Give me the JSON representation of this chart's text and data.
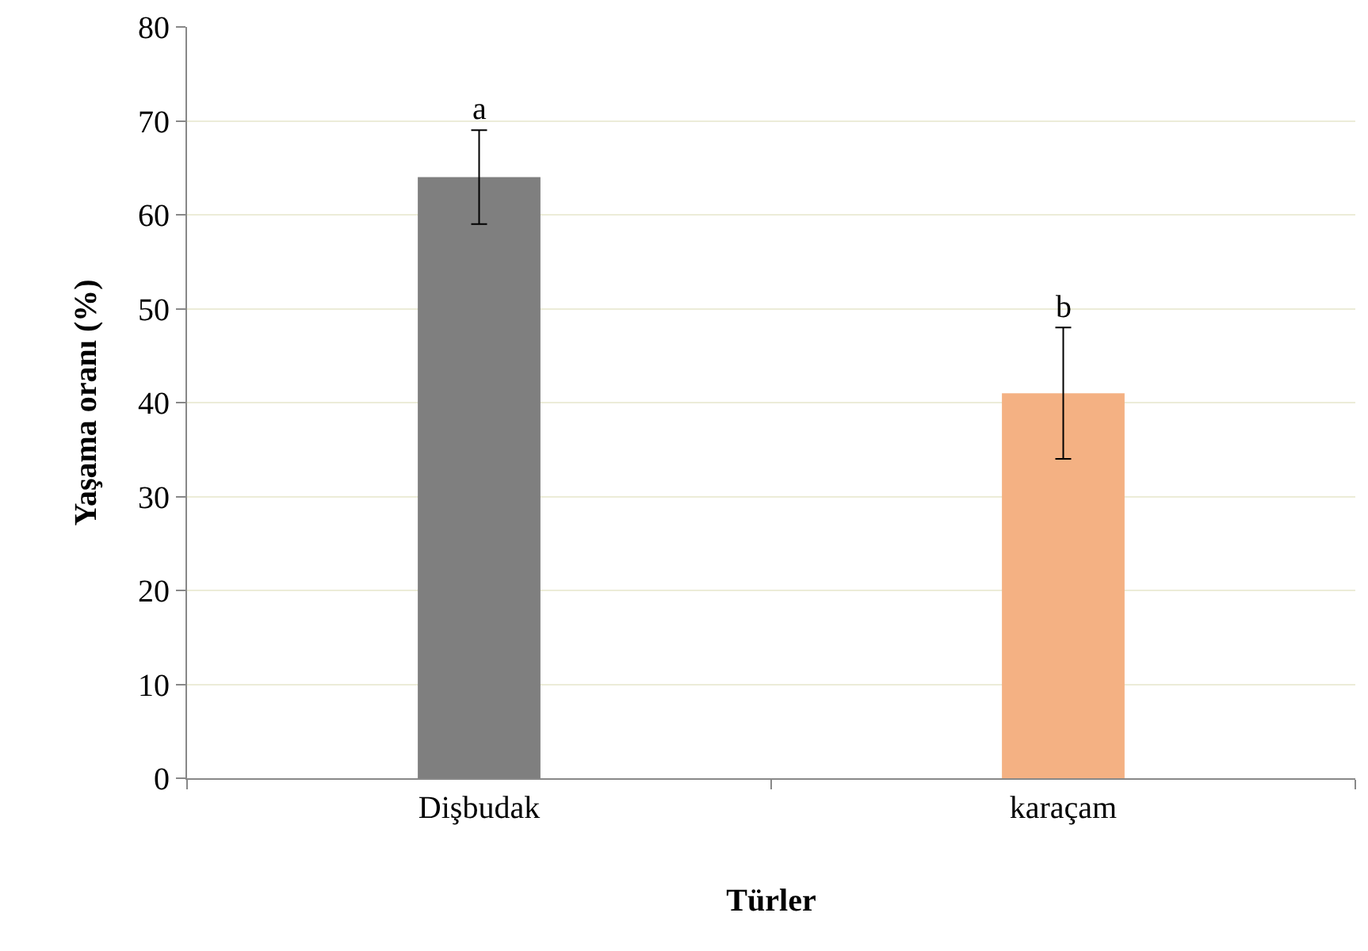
{
  "chart_data": {
    "type": "bar",
    "xlabel": "Türler",
    "ylabel": "Yaşama oranı (%)",
    "categories": [
      "Dişbudak",
      "karaçam"
    ],
    "values": [
      64,
      41
    ],
    "colors": [
      "#7f7f7f",
      "#f4b183"
    ],
    "errors": [
      5,
      7
    ],
    "annotations": [
      {
        "text": "a",
        "x": "Dişbudak",
        "y": 69
      },
      {
        "text": "b",
        "x": "karaçam",
        "y": 48
      }
    ],
    "ylim": [
      0,
      80
    ],
    "yticks": [
      0,
      10,
      20,
      30,
      40,
      50,
      60,
      70,
      80
    ],
    "grid": "y"
  }
}
